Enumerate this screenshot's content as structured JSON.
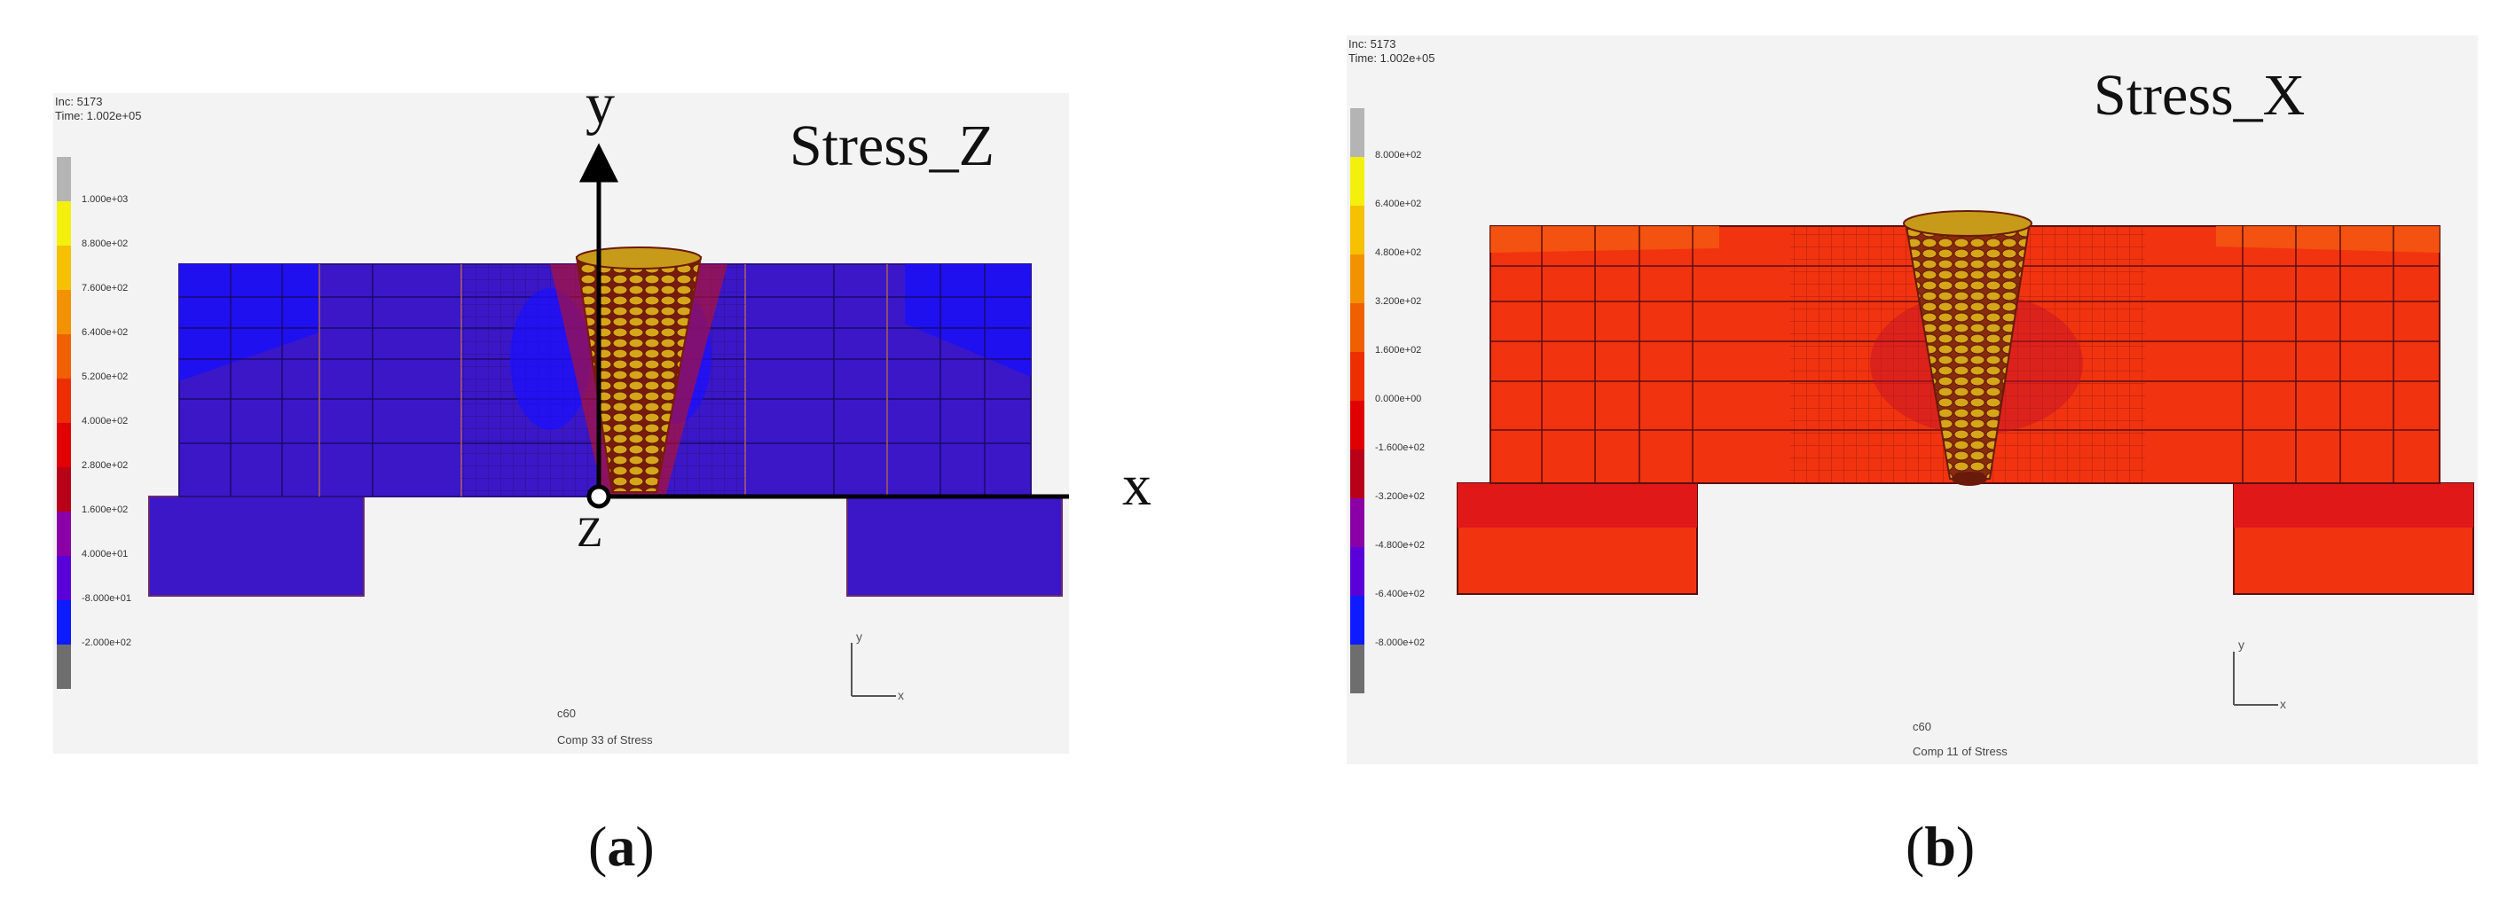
{
  "panel_a": {
    "info_lines": [
      "Inc: 5173",
      "Time: 1.002e+05"
    ],
    "title": "Stress_Z",
    "legend": [
      "1.000e+03",
      "8.800e+02",
      "7.600e+02",
      "6.400e+02",
      "5.200e+02",
      "4.000e+02",
      "2.800e+02",
      "1.600e+02",
      "4.000e+01",
      "-8.000e+01",
      "-2.000e+02"
    ],
    "legend_colors": [
      "#b4b4b4",
      "#f4f00e",
      "#f5c100",
      "#f39200",
      "#f06000",
      "#ec2e00",
      "#e00000",
      "#b80018",
      "#8a00a6",
      "#5a00d8",
      "#0f1bff",
      "#6e6e6e"
    ],
    "axis_y": "y",
    "axis_x": "x",
    "axis_origin": "Z",
    "footer_small": "c60",
    "footer_caption": "Comp 33 of Stress",
    "caption": "a"
  },
  "panel_b": {
    "info_lines": [
      "Inc: 5173",
      "Time: 1.002e+05"
    ],
    "title": "Stress_X",
    "legend": [
      "8.000e+02",
      "6.400e+02",
      "4.800e+02",
      "3.200e+02",
      "1.600e+02",
      "0.000e+00",
      "-1.600e+02",
      "-3.200e+02",
      "-4.800e+02",
      "-6.400e+02",
      "-8.000e+02"
    ],
    "legend_colors": [
      "#b4b4b4",
      "#f4f00e",
      "#f5c100",
      "#f39200",
      "#f06000",
      "#ec2e00",
      "#e00000",
      "#b80018",
      "#8a00a6",
      "#5a00d8",
      "#0f1bff",
      "#6e6e6e"
    ],
    "footer_small": "c60",
    "footer_caption": "Comp 11 of Stress",
    "caption": "b"
  },
  "colors": {
    "panel_bg": "#f3f3f3",
    "stress_z_field": "#3b17c8",
    "stress_z_region": "#2b12e6",
    "stress_x_field": "#f23310",
    "weld_yellow": "#d6b21a",
    "mesh_line": "#5a0d10"
  }
}
